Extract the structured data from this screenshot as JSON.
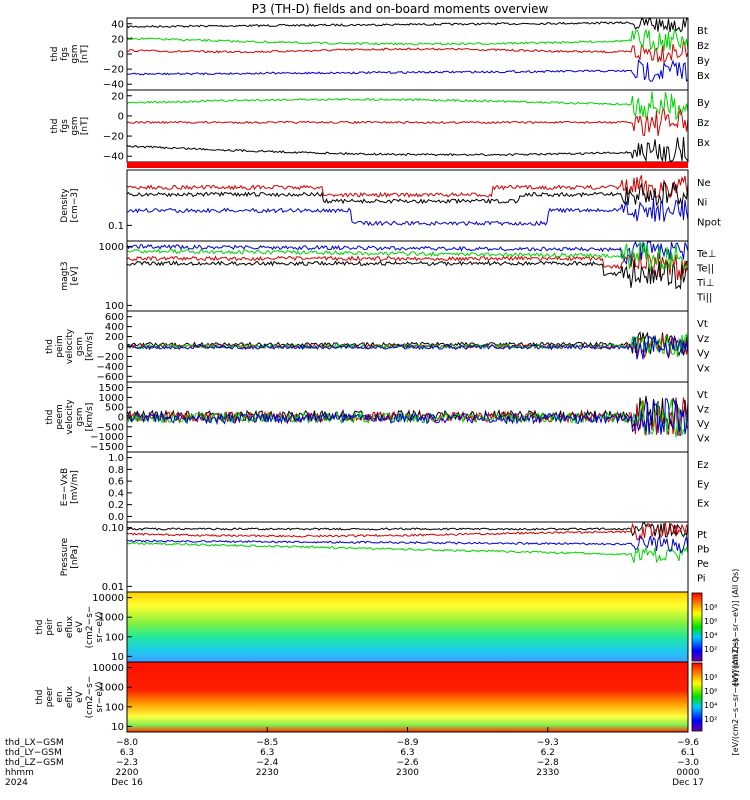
{
  "title": "P3 (TH-D) fields and on-board moments overview",
  "colors": {
    "black": "#000000",
    "red": "#d40000",
    "green": "#00d400",
    "blue": "#0000d4"
  },
  "chart_data": [
    {
      "type": "line",
      "ylabel": [
        "thd",
        "fgs",
        "gsm",
        "[nT]"
      ],
      "yrange": [
        -45,
        45
      ],
      "yticks": [
        "40",
        "20",
        "0",
        "−20",
        "−40"
      ],
      "series": [
        {
          "name": "Bt",
          "color": "black"
        },
        {
          "name": "Bz",
          "color": "red"
        },
        {
          "name": "By",
          "color": "green"
        },
        {
          "name": "Bx",
          "color": "blue"
        }
      ]
    },
    {
      "type": "line",
      "ylabel": [
        "thd",
        "fgs",
        "gsm",
        "[nT]"
      ],
      "yrange": [
        -48,
        22
      ],
      "yticks": [
        "20",
        "0",
        "−20",
        "−40"
      ],
      "series": [
        {
          "name": "By",
          "color": "green"
        },
        {
          "name": "Bz",
          "color": "red"
        },
        {
          "name": "Bx",
          "color": "black"
        }
      ]
    },
    {
      "type": "line",
      "ylabel": [
        "Density",
        "[cm−3]"
      ],
      "yscale": "log",
      "yticks": [
        "0.1"
      ],
      "series": [
        {
          "name": "Ne",
          "color": "red"
        },
        {
          "name": "Ni",
          "color": "black"
        },
        {
          "name": "Npot",
          "color": "blue"
        }
      ]
    },
    {
      "type": "line",
      "ylabel": [
        "magt3",
        "[eV]"
      ],
      "yscale": "log",
      "yticks": [
        "1000",
        "100"
      ],
      "series": [
        {
          "name": "Te⊥",
          "color": "red"
        },
        {
          "name": "Te||",
          "color": "black"
        },
        {
          "name": "Ti⊥",
          "color": "blue"
        },
        {
          "name": "Ti||",
          "color": "green"
        }
      ]
    },
    {
      "type": "line",
      "ylabel": [
        "thd",
        "peim",
        "velocity",
        "gsm",
        "[km/s]"
      ],
      "yrange": [
        -650,
        650
      ],
      "yticks": [
        "600",
        "400",
        "200",
        "0",
        "−200",
        "−400",
        "−600"
      ],
      "series": [
        {
          "name": "Vt",
          "color": "black"
        },
        {
          "name": "Vz",
          "color": "red"
        },
        {
          "name": "Vy",
          "color": "green"
        },
        {
          "name": "Vx",
          "color": "blue"
        }
      ]
    },
    {
      "type": "line",
      "ylabel": [
        "thd",
        "peem",
        "velocity",
        "gsm",
        "[km/s]"
      ],
      "yrange": [
        -1600,
        1600
      ],
      "yticks": [
        "1500",
        "1000",
        "500",
        "0",
        "−500",
        "−1000",
        "−1500"
      ],
      "series": [
        {
          "name": "Vt",
          "color": "black"
        },
        {
          "name": "Vz",
          "color": "red"
        },
        {
          "name": "Vy",
          "color": "green"
        },
        {
          "name": "Vx",
          "color": "blue"
        }
      ]
    },
    {
      "type": "line",
      "ylabel": [
        "E=−VxB",
        "[mV/m]"
      ],
      "yrange": [
        0,
        1
      ],
      "yticks": [
        "1.0",
        "0.8",
        "0.6",
        "0.4",
        "0.2",
        "0.0"
      ],
      "series": [
        {
          "name": "Ez",
          "color": "red"
        },
        {
          "name": "Ey",
          "color": "green"
        },
        {
          "name": "Ex",
          "color": "blue"
        }
      ]
    },
    {
      "type": "line",
      "ylabel": [
        "Pressure",
        "[nPa]"
      ],
      "yscale": "log",
      "yticks": [
        "0.10",
        "0.01"
      ],
      "series": [
        {
          "name": "Pt",
          "color": "black"
        },
        {
          "name": "Pb",
          "color": "red"
        },
        {
          "name": "Pe",
          "color": "green"
        },
        {
          "name": "Pi",
          "color": "blue"
        }
      ]
    },
    {
      "type": "heatmap",
      "ylabel": [
        "thd",
        "peir",
        "en",
        "eflux",
        "eV",
        "(cm2−s−",
        "sr−eV)"
      ],
      "yscale": "log",
      "yticks": [
        "10000",
        "1000",
        "100",
        "10"
      ],
      "colorbar": {
        "label": "[eV/(cm2−s−sr−eV)] (All Qs)",
        "ticks": [
          "10⁸",
          "10⁶",
          "10⁴",
          "10²"
        ]
      }
    },
    {
      "type": "heatmap",
      "ylabel": [
        "thd",
        "peer",
        "en",
        "eflux",
        "eV",
        "(cm2−s−",
        "sr−eV)"
      ],
      "yscale": "log",
      "yticks": [
        "10000",
        "1000",
        "100",
        "10"
      ],
      "colorbar": {
        "label": "[eV/(cm2−s−sr−eV)] (All Qs)",
        "ticks": [
          "10⁸",
          "10⁶",
          "10⁴",
          "10²"
        ]
      }
    }
  ],
  "xaxis": {
    "rows": [
      {
        "label": "thd_LX−GSM",
        "values": [
          "−8.0",
          "−8.5",
          "−8.9",
          "−9.3",
          "−9.6"
        ]
      },
      {
        "label": "thd_LY−GSM",
        "values": [
          "6.3",
          "6.3",
          "6.3",
          "6.2",
          "6.1"
        ]
      },
      {
        "label": "thd_LZ−GSM",
        "values": [
          "−2.3",
          "−2.4",
          "−2.6",
          "−2.8",
          "−3.0"
        ]
      },
      {
        "label": "hhmm",
        "values": [
          "2200",
          "2230",
          "2300",
          "2330",
          "0000"
        ]
      },
      {
        "label": "2024",
        "values": [
          "Dec 16",
          "",
          "",
          "",
          "Dec 17"
        ]
      }
    ]
  }
}
